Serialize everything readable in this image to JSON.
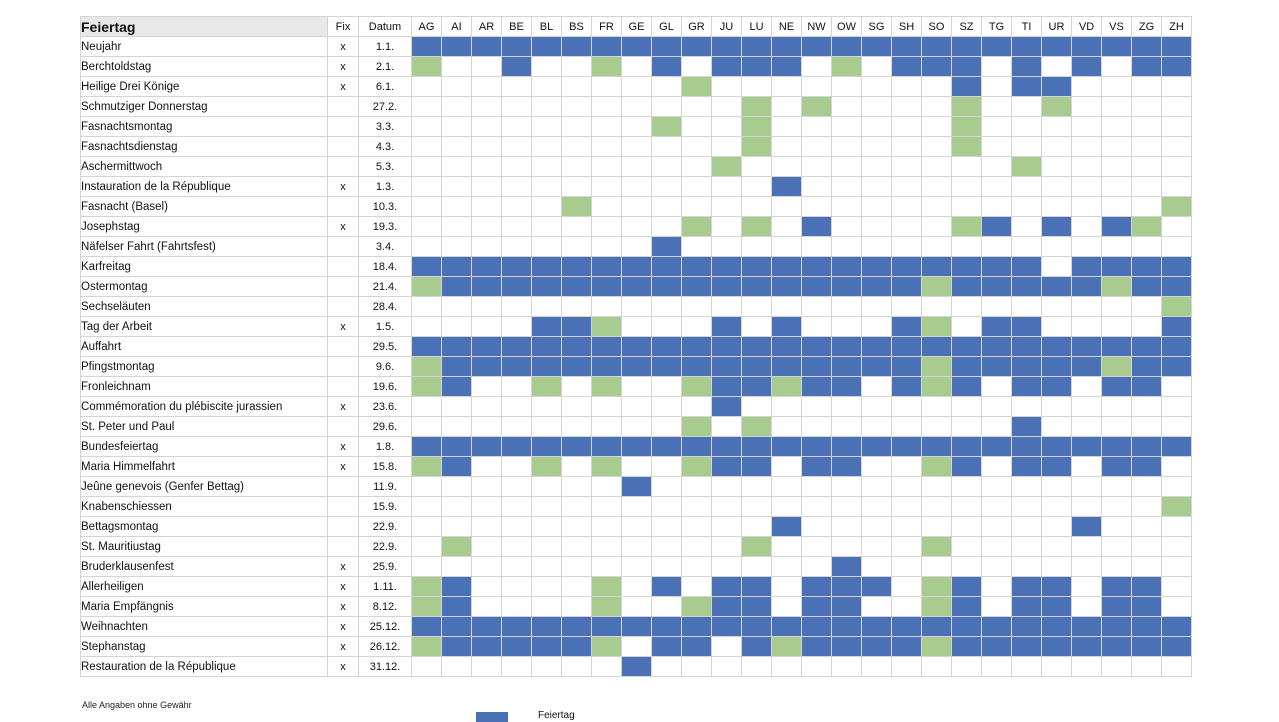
{
  "header": {
    "holiday_label": "Feiertag",
    "fix_label": "Fix",
    "date_label": "Datum",
    "cantons": [
      "AG",
      "AI",
      "AR",
      "BE",
      "BL",
      "BS",
      "FR",
      "GE",
      "GL",
      "GR",
      "JU",
      "LU",
      "NE",
      "NW",
      "OW",
      "SG",
      "SH",
      "SO",
      "SZ",
      "TG",
      "TI",
      "UR",
      "VD",
      "VS",
      "ZG",
      "ZH"
    ]
  },
  "colors": {
    "holiday": "#4a70b5",
    "partial": "#a8cb8f"
  },
  "rows": [
    {
      "name": "Neujahr",
      "fix": "x",
      "date": "1.1.",
      "status": "11111111111111111111111111"
    },
    {
      "name": "Berchtoldstag",
      "fix": "x",
      "date": "2.1.",
      "status": "20010020101110201110101011"
    },
    {
      "name": "Heilige Drei Könige",
      "fix": "x",
      "date": "6.1.",
      "status": "00000000020000000010110000"
    },
    {
      "name": "Schmutziger Donnerstag",
      "fix": "",
      "date": "27.2.",
      "status": "00000000000202000020020000"
    },
    {
      "name": "Fasnachtsmontag",
      "fix": "",
      "date": "3.3.",
      "status": "00000000200200000020000000"
    },
    {
      "name": "Fasnachtsdienstag",
      "fix": "",
      "date": "4.3.",
      "status": "00000000000200000020000000"
    },
    {
      "name": "Aschermittwoch",
      "fix": "",
      "date": "5.3.",
      "status": "00000000002000000000200000"
    },
    {
      "name": "Instauration de la République",
      "fix": "x",
      "date": "1.3.",
      "status": "00000000000010000000000000"
    },
    {
      "name": "Fasnacht (Basel)",
      "fix": "",
      "date": "10.3.",
      "status": "00000200000000000000000002"
    },
    {
      "name": "Josephstag",
      "fix": "x",
      "date": "19.3.",
      "status": "00000000020201000021010120"
    },
    {
      "name": "Näfelser Fahrt (Fahrtsfest)",
      "fix": "",
      "date": "3.4.",
      "status": "00000000100000000000000000"
    },
    {
      "name": "Karfreitag",
      "fix": "",
      "date": "18.4.",
      "status": "11111111111111111111101111"
    },
    {
      "name": "Ostermontag",
      "fix": "",
      "date": "21.4.",
      "status": "21111111111111111211111211"
    },
    {
      "name": "Sechseläuten",
      "fix": "",
      "date": "28.4.",
      "status": "00000000000000000000000002"
    },
    {
      "name": "Tag der Arbeit",
      "fix": "x",
      "date": "1.5.",
      "status": "00001120001010001201100001"
    },
    {
      "name": "Auffahrt",
      "fix": "",
      "date": "29.5.",
      "status": "11111111111111111111111111"
    },
    {
      "name": "Pfingstmontag",
      "fix": "",
      "date": "9.6.",
      "status": "21111111111111111211111211"
    },
    {
      "name": "Fronleichnam",
      "fix": "",
      "date": "19.6.",
      "status": "21002020021121101210110110"
    },
    {
      "name": "Commémoration du plébiscite jurassien",
      "fix": "x",
      "date": "23.6.",
      "status": "00000000001000000000000000"
    },
    {
      "name": "St. Peter und Paul",
      "fix": "",
      "date": "29.6.",
      "status": "00000000020200000000100000"
    },
    {
      "name": "Bundesfeiertag",
      "fix": "x",
      "date": "1.8.",
      "status": "11111111111111111111111111"
    },
    {
      "name": "Maria Himmelfahrt",
      "fix": "x",
      "date": "15.8.",
      "status": "21002020021101100210110110"
    },
    {
      "name": "Jeûne genevois (Genfer Bettag)",
      "fix": "",
      "date": "11.9.",
      "status": "00000001000000000000000000"
    },
    {
      "name": "Knabenschiessen",
      "fix": "",
      "date": "15.9.",
      "status": "00000000000000000000000002"
    },
    {
      "name": "Bettagsmontag",
      "fix": "",
      "date": "22.9.",
      "status": "00000000000010000000001000"
    },
    {
      "name": "St. Mauritiustag",
      "fix": "",
      "date": "22.9.",
      "status": "02000000000200000200000000"
    },
    {
      "name": "Bruderklausenfest",
      "fix": "x",
      "date": "25.9.",
      "status": "00000000000000100000000000"
    },
    {
      "name": "Allerheiligen",
      "fix": "x",
      "date": "1.11.",
      "status": "21000020101101110210110110"
    },
    {
      "name": "Maria Empfängnis",
      "fix": "x",
      "date": "8.12.",
      "status": "21000020021101100210110110"
    },
    {
      "name": "Weihnachten",
      "fix": "x",
      "date": "25.12.",
      "status": "11111111111111111111111111"
    },
    {
      "name": "Stephanstag",
      "fix": "x",
      "date": "26.12.",
      "status": "21111120110121111211111111"
    },
    {
      "name": "Restauration de la République",
      "fix": "x",
      "date": "31.12.",
      "status": "00000001000000000000000000"
    }
  ],
  "footnote": "Alle Angaben ohne Gewähr",
  "legend": {
    "holiday_label": "Feiertag"
  }
}
